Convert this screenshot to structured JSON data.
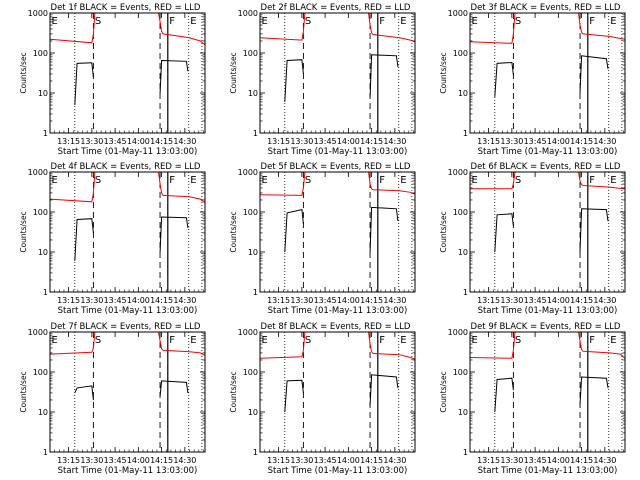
{
  "figure": {
    "panel_titles": [
      "Det 1f BLACK = Events, RED = LLD",
      "Det 2f BLACK = Events, RED = LLD",
      "Det 3f BLACK = Events, RED = LLD",
      "Det 4f BLACK = Events, RED = LLD",
      "Det 5f BLACK = Events, RED = LLD",
      "Det 6f BLACK = Events, RED = LLD",
      "Det 7f BLACK = Events, RED = LLD",
      "Det 8f BLACK = Events, RED = LLD",
      "Det 9f BLACK = Events, RED = LLD"
    ],
    "xlabel": "Start Time (01-May-11 13:03:00)",
    "ylabel": "Counts/sec",
    "x_tick_labels": [
      "13:15",
      "13:30",
      "13:45",
      "14:00",
      "14:15",
      "14:30"
    ],
    "y_tick_labels": [
      "1",
      "10",
      "100",
      "1000"
    ],
    "marker_letters": [
      "E",
      "S",
      "F",
      "E"
    ],
    "colors": {
      "events": "#000000",
      "lld": "#ff0000",
      "background": "#ffffff"
    }
  },
  "chart_data": [
    {
      "type": "line",
      "title": "Det 1f BLACK = Events, RED = LLD",
      "xlabel": "Start Time (01-May-11 13:03:00)",
      "ylabel": "Counts/sec",
      "x_unit": "minutes after 13:03:00",
      "xlim": [
        0,
        100
      ],
      "ylim": [
        1,
        1000
      ],
      "ylog": true,
      "vlines_dotted": [
        0,
        16,
        89.5,
        98
      ],
      "vlines_dashed": [
        28,
        71
      ],
      "vlines_solid": [
        76
      ],
      "series": [
        {
          "name": "BLACK = Events",
          "color": "#000000",
          "segments": [
            {
              "x": [
                16,
                17.5,
                27,
                28
              ],
              "y": [
                5,
                55,
                57,
                25
              ]
            },
            {
              "x": [
                71,
                72,
                88,
                89
              ],
              "y": [
                10,
                65,
                62,
                35
              ]
            }
          ]
        },
        {
          "name": "RED = LLD",
          "color": "#ff0000",
          "segments": [
            {
              "x": [
                0,
                27,
                28,
                29
              ],
              "y": [
                220,
                180,
                300,
                1000
              ]
            },
            {
              "x": [
                70,
                71,
                72,
                73,
                90,
                97,
                100
              ],
              "y": [
                1000,
                600,
                350,
                300,
                240,
                200,
                160
              ]
            }
          ]
        }
      ]
    },
    {
      "type": "line",
      "title": "Det 2f BLACK = Events, RED = LLD",
      "xlabel": "Start Time (01-May-11 13:03:00)",
      "ylabel": "Counts/sec",
      "x_unit": "minutes after 13:03:00",
      "xlim": [
        0,
        100
      ],
      "ylim": [
        1,
        1000
      ],
      "ylog": true,
      "vlines_dotted": [
        0,
        16,
        89.5,
        98
      ],
      "vlines_dashed": [
        28,
        71
      ],
      "vlines_solid": [
        76
      ],
      "series": [
        {
          "name": "BLACK = Events",
          "color": "#000000",
          "segments": [
            {
              "x": [
                16,
                17.5,
                27,
                28
              ],
              "y": [
                6,
                65,
                68,
                30
              ]
            },
            {
              "x": [
                71,
                72,
                88,
                89
              ],
              "y": [
                8,
                90,
                85,
                45
              ]
            }
          ]
        },
        {
          "name": "RED = LLD",
          "color": "#ff0000",
          "segments": [
            {
              "x": [
                0,
                27,
                28,
                29
              ],
              "y": [
                240,
                210,
                350,
                1000
              ]
            },
            {
              "x": [
                70,
                71,
                72,
                73,
                90,
                97,
                100
              ],
              "y": [
                1000,
                500,
                320,
                290,
                240,
                210,
                190
              ]
            }
          ]
        }
      ]
    },
    {
      "type": "line",
      "title": "Det 3f BLACK = Events, RED = LLD",
      "xlabel": "Start Time (01-May-11 13:03:00)",
      "ylabel": "Counts/sec",
      "x_unit": "minutes after 13:03:00",
      "xlim": [
        0,
        100
      ],
      "ylim": [
        1,
        1000
      ],
      "ylog": true,
      "vlines_dotted": [
        0,
        16,
        89.5,
        98
      ],
      "vlines_dashed": [
        28,
        71
      ],
      "vlines_solid": [
        76
      ],
      "series": [
        {
          "name": "BLACK = Events",
          "color": "#000000",
          "segments": [
            {
              "x": [
                16,
                17.5,
                27,
                28
              ],
              "y": [
                8,
                55,
                58,
                28
              ]
            },
            {
              "x": [
                71,
                72,
                88,
                89
              ],
              "y": [
                10,
                85,
                72,
                40
              ]
            }
          ]
        },
        {
          "name": "RED = LLD",
          "color": "#ff0000",
          "segments": [
            {
              "x": [
                0,
                27,
                28,
                29
              ],
              "y": [
                190,
                175,
                300,
                1000
              ]
            },
            {
              "x": [
                70,
                71,
                72,
                73,
                90,
                97,
                100
              ],
              "y": [
                1000,
                500,
                330,
                300,
                260,
                230,
                220
              ]
            }
          ]
        }
      ]
    },
    {
      "type": "line",
      "title": "Det 4f BLACK = Events, RED = LLD",
      "xlabel": "Start Time (01-May-11 13:03:00)",
      "ylabel": "Counts/sec",
      "x_unit": "minutes after 13:03:00",
      "xlim": [
        0,
        100
      ],
      "ylim": [
        1,
        1000
      ],
      "ylog": true,
      "vlines_dotted": [
        0,
        16,
        89.5,
        98
      ],
      "vlines_dashed": [
        28,
        71
      ],
      "vlines_solid": [
        76
      ],
      "series": [
        {
          "name": "BLACK = Events",
          "color": "#000000",
          "segments": [
            {
              "x": [
                16,
                17.5,
                27,
                28
              ],
              "y": [
                6,
                65,
                68,
                30
              ]
            },
            {
              "x": [
                71,
                72,
                88,
                89
              ],
              "y": [
                10,
                75,
                72,
                40
              ]
            }
          ]
        },
        {
          "name": "RED = LLD",
          "color": "#ff0000",
          "segments": [
            {
              "x": [
                0,
                27,
                28,
                29
              ],
              "y": [
                210,
                180,
                300,
                1000
              ]
            },
            {
              "x": [
                70,
                71,
                72,
                73,
                90,
                97,
                100
              ],
              "y": [
                1000,
                500,
                300,
                260,
                240,
                210,
                170
              ]
            }
          ]
        }
      ]
    },
    {
      "type": "line",
      "title": "Det 5f BLACK = Events, RED = LLD",
      "xlabel": "Start Time (01-May-11 13:03:00)",
      "ylabel": "Counts/sec",
      "x_unit": "minutes after 13:03:00",
      "xlim": [
        0,
        100
      ],
      "ylim": [
        1,
        1000
      ],
      "ylog": true,
      "vlines_dotted": [
        0,
        16,
        89.5,
        98
      ],
      "vlines_dashed": [
        28,
        71
      ],
      "vlines_solid": [
        76
      ],
      "series": [
        {
          "name": "BLACK = Events",
          "color": "#000000",
          "segments": [
            {
              "x": [
                16,
                17.5,
                27,
                28
              ],
              "y": [
                10,
                95,
                115,
                50
              ]
            },
            {
              "x": [
                71,
                72,
                88,
                89
              ],
              "y": [
                10,
                130,
                120,
                60
              ]
            }
          ]
        },
        {
          "name": "RED = LLD",
          "color": "#ff0000",
          "segments": [
            {
              "x": [
                0,
                27,
                28,
                29
              ],
              "y": [
                270,
                260,
                400,
                1000
              ]
            },
            {
              "x": [
                70,
                71,
                72,
                73,
                90,
                97,
                100
              ],
              "y": [
                1000,
                500,
                380,
                360,
                340,
                310,
                280
              ]
            }
          ]
        }
      ]
    },
    {
      "type": "line",
      "title": "Det 6f BLACK = Events, RED = LLD",
      "xlabel": "Start Time (01-May-11 13:03:00)",
      "ylabel": "Counts/sec",
      "x_unit": "minutes after 13:03:00",
      "xlim": [
        0,
        100
      ],
      "ylim": [
        1,
        1000
      ],
      "ylog": true,
      "vlines_dotted": [
        0,
        16,
        89.5,
        98
      ],
      "vlines_dashed": [
        28,
        71
      ],
      "vlines_solid": [
        76
      ],
      "series": [
        {
          "name": "BLACK = Events",
          "color": "#000000",
          "segments": [
            {
              "x": [
                16,
                17.5,
                27,
                28
              ],
              "y": [
                10,
                85,
                90,
                45
              ]
            },
            {
              "x": [
                71,
                72,
                88,
                89
              ],
              "y": [
                10,
                120,
                115,
                60
              ]
            }
          ]
        },
        {
          "name": "RED = LLD",
          "color": "#ff0000",
          "segments": [
            {
              "x": [
                0,
                27,
                28,
                29
              ],
              "y": [
                380,
                380,
                500,
                1000
              ]
            },
            {
              "x": [
                70,
                71,
                72,
                73,
                90,
                97,
                100
              ],
              "y": [
                1000,
                600,
                480,
                460,
                420,
                390,
                380
              ]
            }
          ]
        }
      ]
    },
    {
      "type": "line",
      "title": "Det 7f BLACK = Events, RED = LLD",
      "xlabel": "Start Time (01-May-11 13:03:00)",
      "ylabel": "Counts/sec",
      "x_unit": "minutes after 13:03:00",
      "xlim": [
        0,
        100
      ],
      "ylim": [
        1,
        1000
      ],
      "ylog": true,
      "vlines_dotted": [
        0,
        16,
        89.5,
        98
      ],
      "vlines_dashed": [
        28,
        71
      ],
      "vlines_solid": [
        76
      ],
      "series": [
        {
          "name": "BLACK = Events",
          "color": "#000000",
          "segments": [
            {
              "x": [
                16,
                17.5,
                27,
                28
              ],
              "y": [
                30,
                40,
                45,
                20
              ]
            },
            {
              "x": [
                71,
                72,
                88,
                89
              ],
              "y": [
                25,
                60,
                55,
                30
              ]
            }
          ]
        },
        {
          "name": "RED = LLD",
          "color": "#ff0000",
          "segments": [
            {
              "x": [
                0,
                27,
                28,
                29
              ],
              "y": [
                280,
                310,
                400,
                1000
              ]
            },
            {
              "x": [
                70,
                71,
                72,
                73,
                90,
                97,
                100
              ],
              "y": [
                1000,
                600,
                380,
                350,
                320,
                300,
                260
              ]
            }
          ]
        }
      ]
    },
    {
      "type": "line",
      "title": "Det 8f BLACK = Events, RED = LLD",
      "xlabel": "Start Time (01-May-11 13:03:00)",
      "ylabel": "Counts/sec",
      "x_unit": "minutes after 13:03:00",
      "xlim": [
        0,
        100
      ],
      "ylim": [
        1,
        1000
      ],
      "ylog": true,
      "vlines_dotted": [
        0,
        16,
        89.5,
        98
      ],
      "vlines_dashed": [
        28,
        71
      ],
      "vlines_solid": [
        76
      ],
      "series": [
        {
          "name": "BLACK = Events",
          "color": "#000000",
          "segments": [
            {
              "x": [
                16,
                17.5,
                27,
                28
              ],
              "y": [
                10,
                60,
                62,
                30
              ]
            },
            {
              "x": [
                71,
                72,
                88,
                89
              ],
              "y": [
                15,
                85,
                75,
                40
              ]
            }
          ]
        },
        {
          "name": "RED = LLD",
          "color": "#ff0000",
          "segments": [
            {
              "x": [
                0,
                27,
                28,
                29
              ],
              "y": [
                220,
                240,
                350,
                1000
              ]
            },
            {
              "x": [
                70,
                71,
                72,
                73,
                90,
                97,
                100
              ],
              "y": [
                1000,
                500,
                320,
                290,
                270,
                230,
                210
              ]
            }
          ]
        }
      ]
    },
    {
      "type": "line",
      "title": "Det 9f BLACK = Events, RED = LLD",
      "xlabel": "Start Time (01-May-11 13:03:00)",
      "ylabel": "Counts/sec",
      "x_unit": "minutes after 13:03:00",
      "xlim": [
        0,
        100
      ],
      "ylim": [
        1,
        1000
      ],
      "ylog": true,
      "vlines_dotted": [
        0,
        16,
        89.5,
        98
      ],
      "vlines_dashed": [
        28,
        71
      ],
      "vlines_solid": [
        76
      ],
      "series": [
        {
          "name": "BLACK = Events",
          "color": "#000000",
          "segments": [
            {
              "x": [
                16,
                17.5,
                27,
                28
              ],
              "y": [
                10,
                65,
                70,
                35
              ]
            },
            {
              "x": [
                71,
                72,
                88,
                89
              ],
              "y": [
                15,
                75,
                70,
                40
              ]
            }
          ]
        },
        {
          "name": "RED = LLD",
          "color": "#ff0000",
          "segments": [
            {
              "x": [
                0,
                27,
                28,
                29
              ],
              "y": [
                230,
                220,
                350,
                1000
              ]
            },
            {
              "x": [
                70,
                71,
                72,
                73,
                90,
                97,
                100
              ],
              "y": [
                1000,
                600,
                360,
                330,
                300,
                280,
                220
              ]
            }
          ]
        }
      ]
    }
  ]
}
